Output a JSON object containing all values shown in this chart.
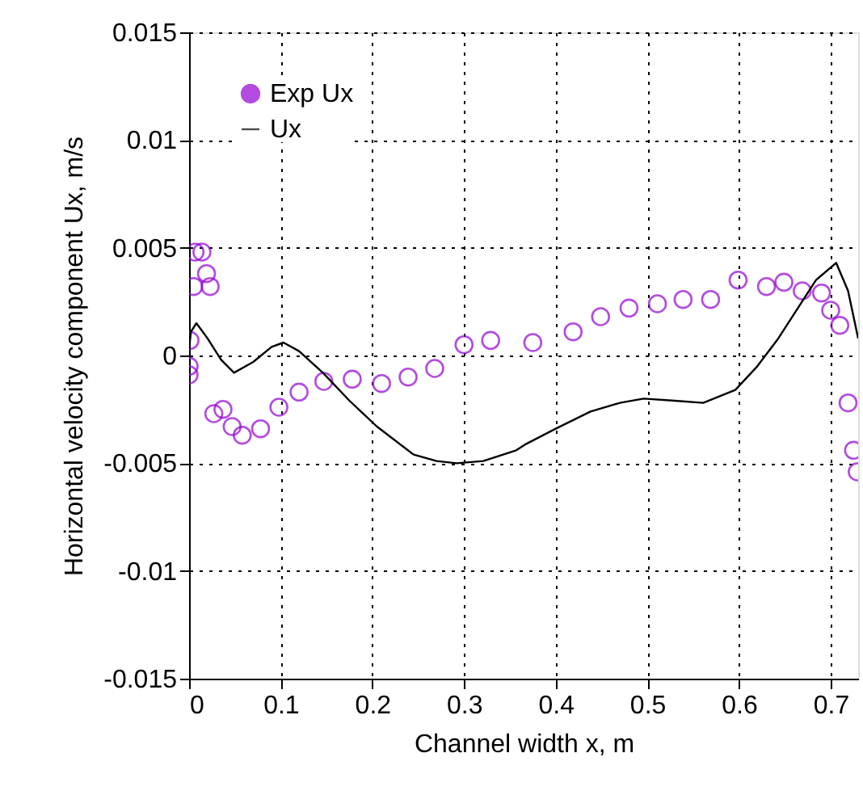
{
  "chart_data": {
    "type": "scatter",
    "xlabel": "Channel width x, m",
    "ylabel": "Horizontal velocity component Ux, m/s",
    "xlim": [
      0,
      0.73
    ],
    "xticks": [
      0,
      0.1,
      0.2,
      0.3,
      0.4,
      0.5,
      0.6,
      0.7
    ],
    "ylim": [
      -0.015,
      0.015
    ],
    "yticks": [
      -0.015,
      -0.01,
      -0.005,
      0,
      0.005,
      0.01,
      0.015
    ],
    "grid": true,
    "legend": "top left",
    "series": [
      {
        "name": "Exp Ux",
        "marker": "circle",
        "color": "#9400d3",
        "x": [
          0.0065,
          0.014,
          0.005,
          0.019,
          0.023,
          0.001,
          0,
          0,
          0.027,
          0.037,
          0.047,
          0.058,
          0.078,
          0.098,
          0.12,
          0.147,
          0.178,
          0.21,
          0.239,
          0.268,
          0.3,
          0.329,
          0.375,
          0.419,
          0.449,
          0.48,
          0.511,
          0.539,
          0.569,
          0.599,
          0.63,
          0.649,
          0.669,
          0.69,
          0.7,
          0.71,
          0.719,
          0.725,
          0.729
        ],
        "values": [
          0.0048,
          0.0048,
          0.0032,
          0.0038,
          0.0032,
          0.0007,
          -0.0005,
          -0.0009,
          -0.0027,
          -0.0025,
          -0.0033,
          -0.0037,
          -0.0034,
          -0.0024,
          -0.0017,
          -0.0012,
          -0.0011,
          -0.0013,
          -0.001,
          -0.0006,
          0.0005,
          0.0007,
          0.0006,
          0.0011,
          0.0018,
          0.0022,
          0.0024,
          0.0026,
          0.0026,
          0.0035,
          0.0032,
          0.0034,
          0.003,
          0.0029,
          0.0021,
          0.0014,
          -0.0022,
          -0.0044,
          -0.0054
        ]
      },
      {
        "name": "Ux",
        "type": "line",
        "marker": "none",
        "line_style": "solid",
        "color": "#000000",
        "x": [
          0,
          0.002,
          0.008,
          0.02,
          0.035,
          0.049,
          0.07,
          0.09,
          0.103,
          0.12,
          0.146,
          0.175,
          0.205,
          0.245,
          0.27,
          0.292,
          0.321,
          0.357,
          0.368,
          0.4,
          0.438,
          0.47,
          0.496,
          0.53,
          0.561,
          0.596,
          0.62,
          0.643,
          0.684,
          0.706,
          0.719,
          0.73
        ],
        "values": [
          0.0003,
          0.0011,
          0.0015,
          0.0008,
          -0.0002,
          -0.0008,
          -0.0003,
          0.0004,
          0.0006,
          0.0002,
          -0.0008,
          -0.0021,
          -0.0033,
          -0.0046,
          -0.0049,
          -0.005,
          -0.0049,
          -0.0044,
          -0.0041,
          -0.0034,
          -0.0026,
          -0.0022,
          -0.002,
          -0.0021,
          -0.0022,
          -0.0016,
          -0.0005,
          0.0008,
          0.0035,
          0.0043,
          0.003,
          0.0008
        ]
      }
    ]
  }
}
